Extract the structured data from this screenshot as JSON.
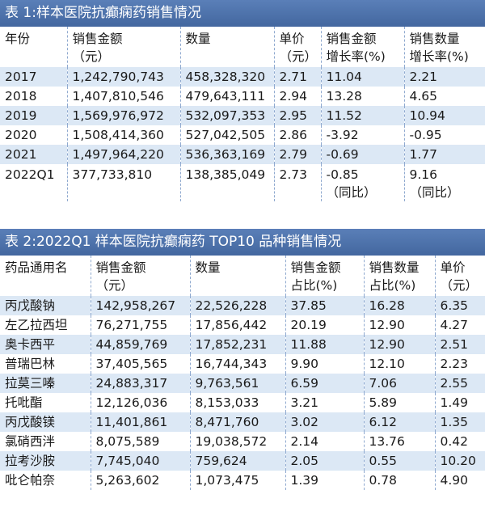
{
  "table1": {
    "title": "表 1:样本医院抗癫痫药销售情况",
    "headers": [
      [
        "年份"
      ],
      [
        "销售金额",
        "（元）"
      ],
      [
        "数量"
      ],
      [
        "单价",
        "（元）"
      ],
      [
        "销售金额",
        "增长率(%)"
      ],
      [
        "销售数量",
        "增长率(%)"
      ]
    ],
    "rows": [
      [
        "2017",
        "1,242,790,743",
        "458,328,320",
        "2.71",
        "11.04",
        "2.21"
      ],
      [
        "2018",
        "1,407,810,546",
        "479,643,111",
        "2.94",
        "13.28",
        "4.65"
      ],
      [
        "2019",
        "1,569,976,972",
        "532,097,353",
        "2.95",
        "11.52",
        "10.94"
      ],
      [
        "2020",
        "1,508,414,360",
        "527,042,505",
        "2.86",
        "-3.92",
        "-0.95"
      ],
      [
        "2021",
        "1,497,964,220",
        "536,363,169",
        "2.79",
        "-0.69",
        "1.77"
      ]
    ],
    "last_row": [
      "2022Q1",
      "377,733,810",
      "138,385,049",
      "2.73",
      "-0.85",
      "9.16"
    ],
    "last_row_note": "（同比）"
  },
  "table2": {
    "title": "表 2:2022Q1 样本医院抗癫痫药 TOP10 品种销售情况",
    "headers": [
      [
        "药品通用名"
      ],
      [
        "销售金额",
        "（元）"
      ],
      [
        "数量"
      ],
      [
        "销售金额",
        "占比(%)"
      ],
      [
        "销售数量",
        "占比(%)"
      ],
      [
        "单价",
        "（元）"
      ]
    ],
    "rows": [
      [
        "丙戊酸钠",
        "142,958,267",
        "22,526,228",
        "37.85",
        "16.28",
        "6.35"
      ],
      [
        "左乙拉西坦",
        "76,271,755",
        "17,856,442",
        "20.19",
        "12.90",
        "4.27"
      ],
      [
        "奥卡西平",
        "44,859,769",
        "17,852,231",
        "11.88",
        "12.90",
        "2.51"
      ],
      [
        "普瑞巴林",
        "37,405,565",
        "16,744,343",
        "9.90",
        "12.10",
        "2.23"
      ],
      [
        "拉莫三嗪",
        "24,883,317",
        "9,763,561",
        "6.59",
        "7.06",
        "2.55"
      ],
      [
        "托吡酯",
        "12,126,036",
        "8,153,033",
        "3.21",
        "5.89",
        "1.49"
      ],
      [
        "丙戊酸镁",
        "11,401,861",
        "8,471,760",
        "3.02",
        "6.12",
        "1.35"
      ],
      [
        "氯硝西泮",
        "8,075,589",
        "19,038,572",
        "2.14",
        "13.76",
        "0.42"
      ],
      [
        "拉考沙胺",
        "7,745,040",
        "759,624",
        "2.05",
        "0.55",
        "10.20"
      ],
      [
        "吡仑帕奈",
        "5,263,602",
        "1,073,475",
        "1.39",
        "0.78",
        "4.90"
      ]
    ]
  },
  "colors": {
    "title_bar": "#4a6fa9",
    "stripe": "#dce8f5",
    "title_text": "#ffffff"
  }
}
